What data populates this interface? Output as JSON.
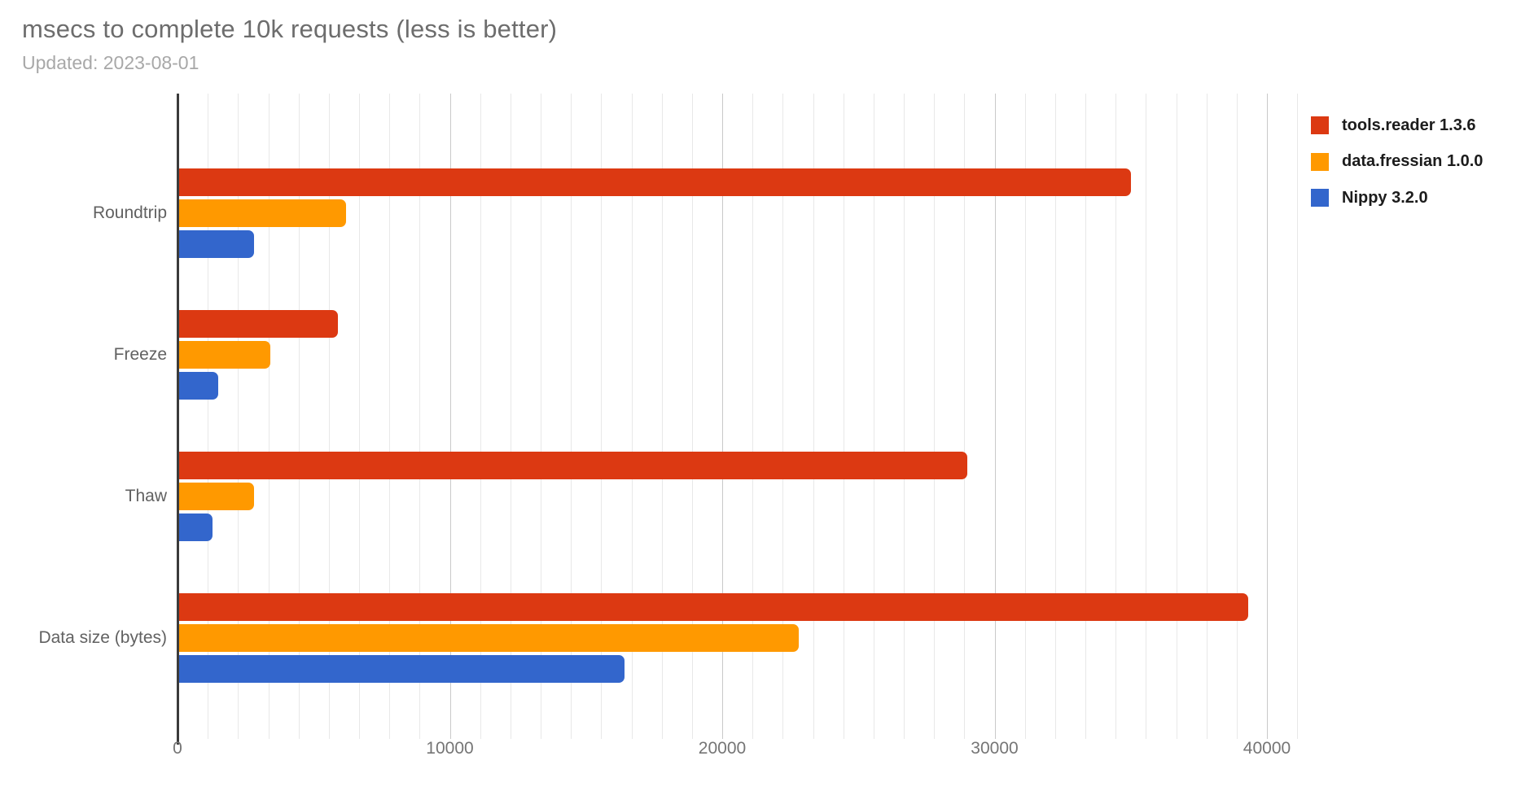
{
  "chart_data": {
    "type": "bar",
    "orientation": "horizontal",
    "title": "msecs to complete 10k requests (less is better)",
    "subtitle": "Updated: 2023-08-01",
    "categories": [
      "Roundtrip",
      "Freeze",
      "Thaw",
      "Data size (bytes)"
    ],
    "series": [
      {
        "name": "tools.reader 1.3.6",
        "color": "#dc3912",
        "values": [
          35000,
          5900,
          29000,
          39300
        ]
      },
      {
        "name": "data.fressian 1.0.0",
        "color": "#ff9900",
        "values": [
          6200,
          3400,
          2800,
          22800
        ]
      },
      {
        "name": "Nippy 3.2.0",
        "color": "#3366cc",
        "values": [
          2800,
          1500,
          1300,
          16400
        ]
      }
    ],
    "xlim": [
      0,
      41100
    ],
    "x_ticks": [
      0,
      10000,
      20000,
      30000,
      40000
    ],
    "minor_gridlines_per_major": 9,
    "grid": true,
    "legend_position": "right",
    "colors": {
      "axis_line": "#3b3b3b",
      "major_gridline": "#c9c9c9",
      "minor_gridline": "#e8e8e8",
      "title_text": "#6d6d6d",
      "subtitle_text": "#a8a8a8",
      "label_text": "#616161",
      "tick_text": "#757575"
    }
  }
}
